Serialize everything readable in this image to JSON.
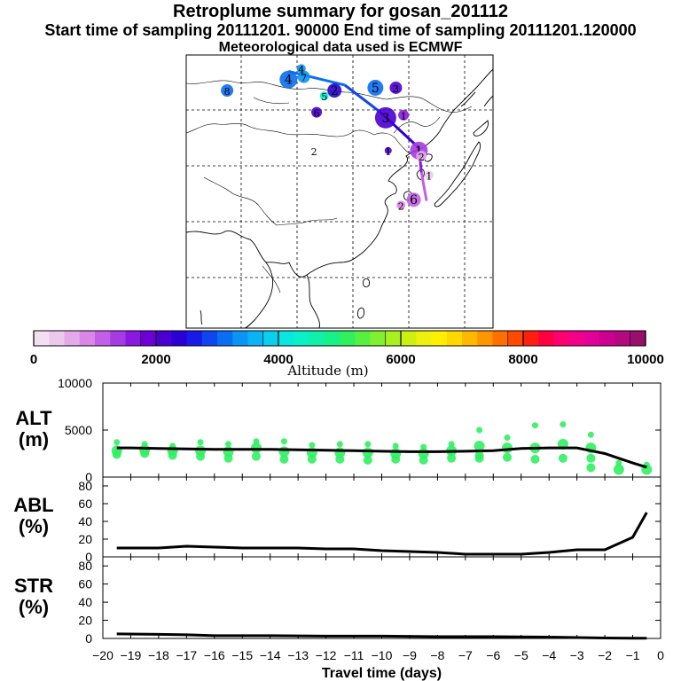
{
  "titles": {
    "line1": "Retroplume summary for gosan_201112",
    "line2": "Start time of sampling 20111201. 90000     End time of sampling 20111201.120000",
    "line3": "Meteorological data used is ECMWF"
  },
  "colorbar": {
    "label": "Altitude (m)",
    "ticks": [
      "0",
      "2000",
      "4000",
      "6000",
      "8000",
      "10000"
    ],
    "range": [
      0,
      10000
    ]
  },
  "map": {
    "track": [
      {
        "lon": 127.0,
        "lat": 33.3,
        "alt": 1000
      },
      {
        "lon": 126.0,
        "lat": 38.5,
        "alt": 1200
      },
      {
        "lon": 125.5,
        "lat": 43.0,
        "alt": 2100
      },
      {
        "lon": 118.0,
        "lat": 49.5,
        "alt": 2600
      },
      {
        "lon": 111.0,
        "lat": 54.5,
        "alt": 2900
      },
      {
        "lon": 100.0,
        "lat": 57.0,
        "alt": 3100
      }
    ],
    "clusters": [
      {
        "label": "4",
        "lon": 100.0,
        "lat": 55.5,
        "alt": 3100,
        "size": 10
      },
      {
        "label": "7",
        "lon": 103.0,
        "lat": 56.0,
        "alt": 3300,
        "size": 7
      },
      {
        "label": "4",
        "lon": 102.5,
        "lat": 57.5,
        "alt": 3400,
        "size": 5
      },
      {
        "label": "2",
        "lon": 109.0,
        "lat": 53.5,
        "alt": 2300,
        "size": 8
      },
      {
        "label": "5",
        "lon": 107.0,
        "lat": 52.5,
        "alt": 4400,
        "size": 5
      },
      {
        "label": "5",
        "lon": 117.0,
        "lat": 54.0,
        "alt": 3000,
        "size": 9
      },
      {
        "label": "3",
        "lon": 121.0,
        "lat": 54.0,
        "alt": 2000,
        "size": 7
      },
      {
        "label": "8",
        "lon": 88.0,
        "lat": 53.5,
        "alt": 3100,
        "size": 7
      },
      {
        "label": "6",
        "lon": 105.5,
        "lat": 49.5,
        "alt": 2200,
        "size": 6
      },
      {
        "label": "3",
        "lon": 119.0,
        "lat": 48.5,
        "alt": 2100,
        "size": 12
      },
      {
        "label": "1",
        "lon": 122.5,
        "lat": 49.0,
        "alt": 1600,
        "size": 6
      },
      {
        "label": "1",
        "lon": 125.5,
        "lat": 42.5,
        "alt": 1300,
        "size": 10
      },
      {
        "label": "2",
        "lon": 126.0,
        "lat": 41.5,
        "alt": 600,
        "size": 6
      },
      {
        "label": "1",
        "lon": 127.5,
        "lat": 38.0,
        "alt": 300,
        "size": 5
      },
      {
        "label": "6",
        "lon": 124.5,
        "lat": 33.5,
        "alt": 1000,
        "size": 8
      },
      {
        "label": "2",
        "lon": 122.0,
        "lat": 32.5,
        "alt": 900,
        "size": 5
      },
      {
        "label": "1",
        "lon": 119.5,
        "lat": 42.5,
        "alt": 2200,
        "size": 4
      },
      {
        "label": "2",
        "lon": 105.0,
        "lat": 42.5,
        "alt": 0,
        "size": 0
      }
    ]
  },
  "chart_data": [
    {
      "type": "line",
      "name": "ALT",
      "ylabel": "ALT\n(m)",
      "ylim": [
        0,
        10000
      ],
      "yticks": [
        "10000",
        "5000",
        "0"
      ],
      "x": [
        -19.5,
        -19.0,
        -18.0,
        -17.0,
        -16.0,
        -15.0,
        -14.0,
        -13.0,
        -12.0,
        -11.0,
        -10.0,
        -9.0,
        -8.0,
        -7.0,
        -6.0,
        -5.0,
        -4.0,
        -3.0,
        -2.5,
        -2.0,
        -1.5,
        -1.0,
        -0.5
      ],
      "values": [
        3100,
        3100,
        3050,
        3000,
        2950,
        2950,
        2950,
        2900,
        2850,
        2800,
        2750,
        2700,
        2700,
        2750,
        2800,
        3050,
        3100,
        3100,
        2800,
        2500,
        2000,
        1500,
        1050
      ],
      "spread": [
        {
          "x": -19.5,
          "values": [
            3700,
            2800,
            2400
          ]
        },
        {
          "x": -18.5,
          "values": [
            3500,
            2900,
            2500
          ]
        },
        {
          "x": -17.5,
          "values": [
            3300,
            2800,
            2300
          ]
        },
        {
          "x": -16.5,
          "values": [
            3700,
            2800,
            2200
          ]
        },
        {
          "x": -15.5,
          "values": [
            3500,
            2700,
            2000
          ]
        },
        {
          "x": -14.5,
          "values": [
            3800,
            3100,
            2200
          ]
        },
        {
          "x": -13.5,
          "values": [
            3800,
            2700,
            1900
          ]
        },
        {
          "x": -12.5,
          "values": [
            3400,
            2600,
            1900
          ]
        },
        {
          "x": -11.5,
          "values": [
            3500,
            2600,
            1900
          ]
        },
        {
          "x": -10.5,
          "values": [
            3500,
            2600,
            1800
          ]
        },
        {
          "x": -9.5,
          "values": [
            3300,
            2500,
            1900
          ]
        },
        {
          "x": -8.5,
          "values": [
            3200,
            2500,
            1800
          ]
        },
        {
          "x": -7.5,
          "values": [
            3500,
            2800,
            2000
          ]
        },
        {
          "x": -6.5,
          "values": [
            5000,
            3300,
            2300,
            2000
          ]
        },
        {
          "x": -5.5,
          "values": [
            4200,
            3100,
            2100
          ]
        },
        {
          "x": -4.5,
          "values": [
            5500,
            3100,
            1900
          ]
        },
        {
          "x": -3.5,
          "values": [
            5600,
            3500,
            2000
          ]
        },
        {
          "x": -2.5,
          "values": [
            4500,
            3100,
            2000,
            1000
          ]
        },
        {
          "x": -1.5,
          "values": [
            1500,
            800
          ]
        },
        {
          "x": -0.5,
          "values": [
            1300,
            800
          ]
        }
      ]
    },
    {
      "type": "line",
      "name": "ABL",
      "ylabel": "ABL\n(%)",
      "ylim": [
        0,
        90
      ],
      "yticks": [
        "80",
        "60",
        "40",
        "20",
        "0"
      ],
      "x": [
        -19.5,
        -18.0,
        -17.0,
        -16.0,
        -15.0,
        -14.0,
        -13.0,
        -12.0,
        -11.0,
        -10.0,
        -9.0,
        -8.0,
        -7.0,
        -6.0,
        -5.0,
        -4.0,
        -3.0,
        -2.0,
        -1.0,
        -0.5
      ],
      "values": [
        10,
        10,
        12,
        11,
        10,
        10,
        10,
        9,
        9,
        7,
        6,
        5,
        3,
        3,
        3,
        5,
        8,
        8,
        22,
        50
      ]
    },
    {
      "type": "line",
      "name": "STR",
      "ylabel": "STR\n(%)",
      "ylim": [
        0,
        90
      ],
      "yticks": [
        "80",
        "60",
        "40",
        "20",
        "0"
      ],
      "x": [
        -19.5,
        -18.0,
        -17.0,
        -16.0,
        -14.0,
        -12.0,
        -10.0,
        -8.0,
        -6.0,
        -4.0,
        -2.0,
        -1.0,
        -0.5
      ],
      "values": [
        5,
        4.5,
        4,
        3,
        3,
        2.5,
        2.5,
        2,
        2,
        1.5,
        0.5,
        0.3,
        0.2
      ]
    }
  ],
  "xaxis": {
    "label": "Travel time (days)",
    "ticks": [
      "−20",
      "−19",
      "−18",
      "−17",
      "−16",
      "−15",
      "−14",
      "−13",
      "−12",
      "−11",
      "−10",
      "−9",
      "−8",
      "−7",
      "−6",
      "−5",
      "−4",
      "−3",
      "−2",
      "−1",
      "0"
    ],
    "range": [
      -20,
      0
    ]
  }
}
